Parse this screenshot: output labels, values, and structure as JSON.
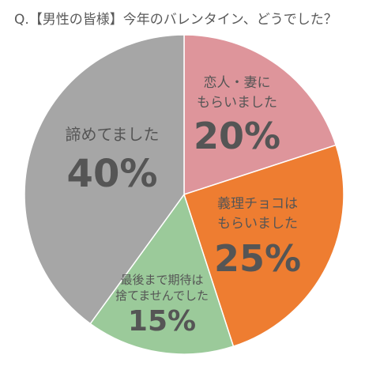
{
  "title": "Q.【男性の皆様】今年のバレンタイン、どうでした？",
  "chart_data": {
    "type": "pie",
    "title": "Q.【男性の皆様】今年のバレンタイン、どうでした？",
    "start_angle_deg": 0,
    "direction": "clockwise",
    "slices": [
      {
        "label_lines": [
          "恋人・妻に",
          "もらいました"
        ],
        "value": 20,
        "value_label": "20%",
        "color": "#de959b"
      },
      {
        "label_lines": [
          "義理チョコは",
          "もらいました"
        ],
        "value": 25,
        "value_label": "25%",
        "color": "#ee7d31"
      },
      {
        "label_lines": [
          "最後まで期待は",
          "捨てませんでした"
        ],
        "value": 15,
        "value_label": "15%",
        "color": "#9bca9a"
      },
      {
        "label_lines": [
          "諦めてました"
        ],
        "value": 40,
        "value_label": "40%",
        "color": "#a6a6a6"
      }
    ],
    "legend": "none"
  }
}
